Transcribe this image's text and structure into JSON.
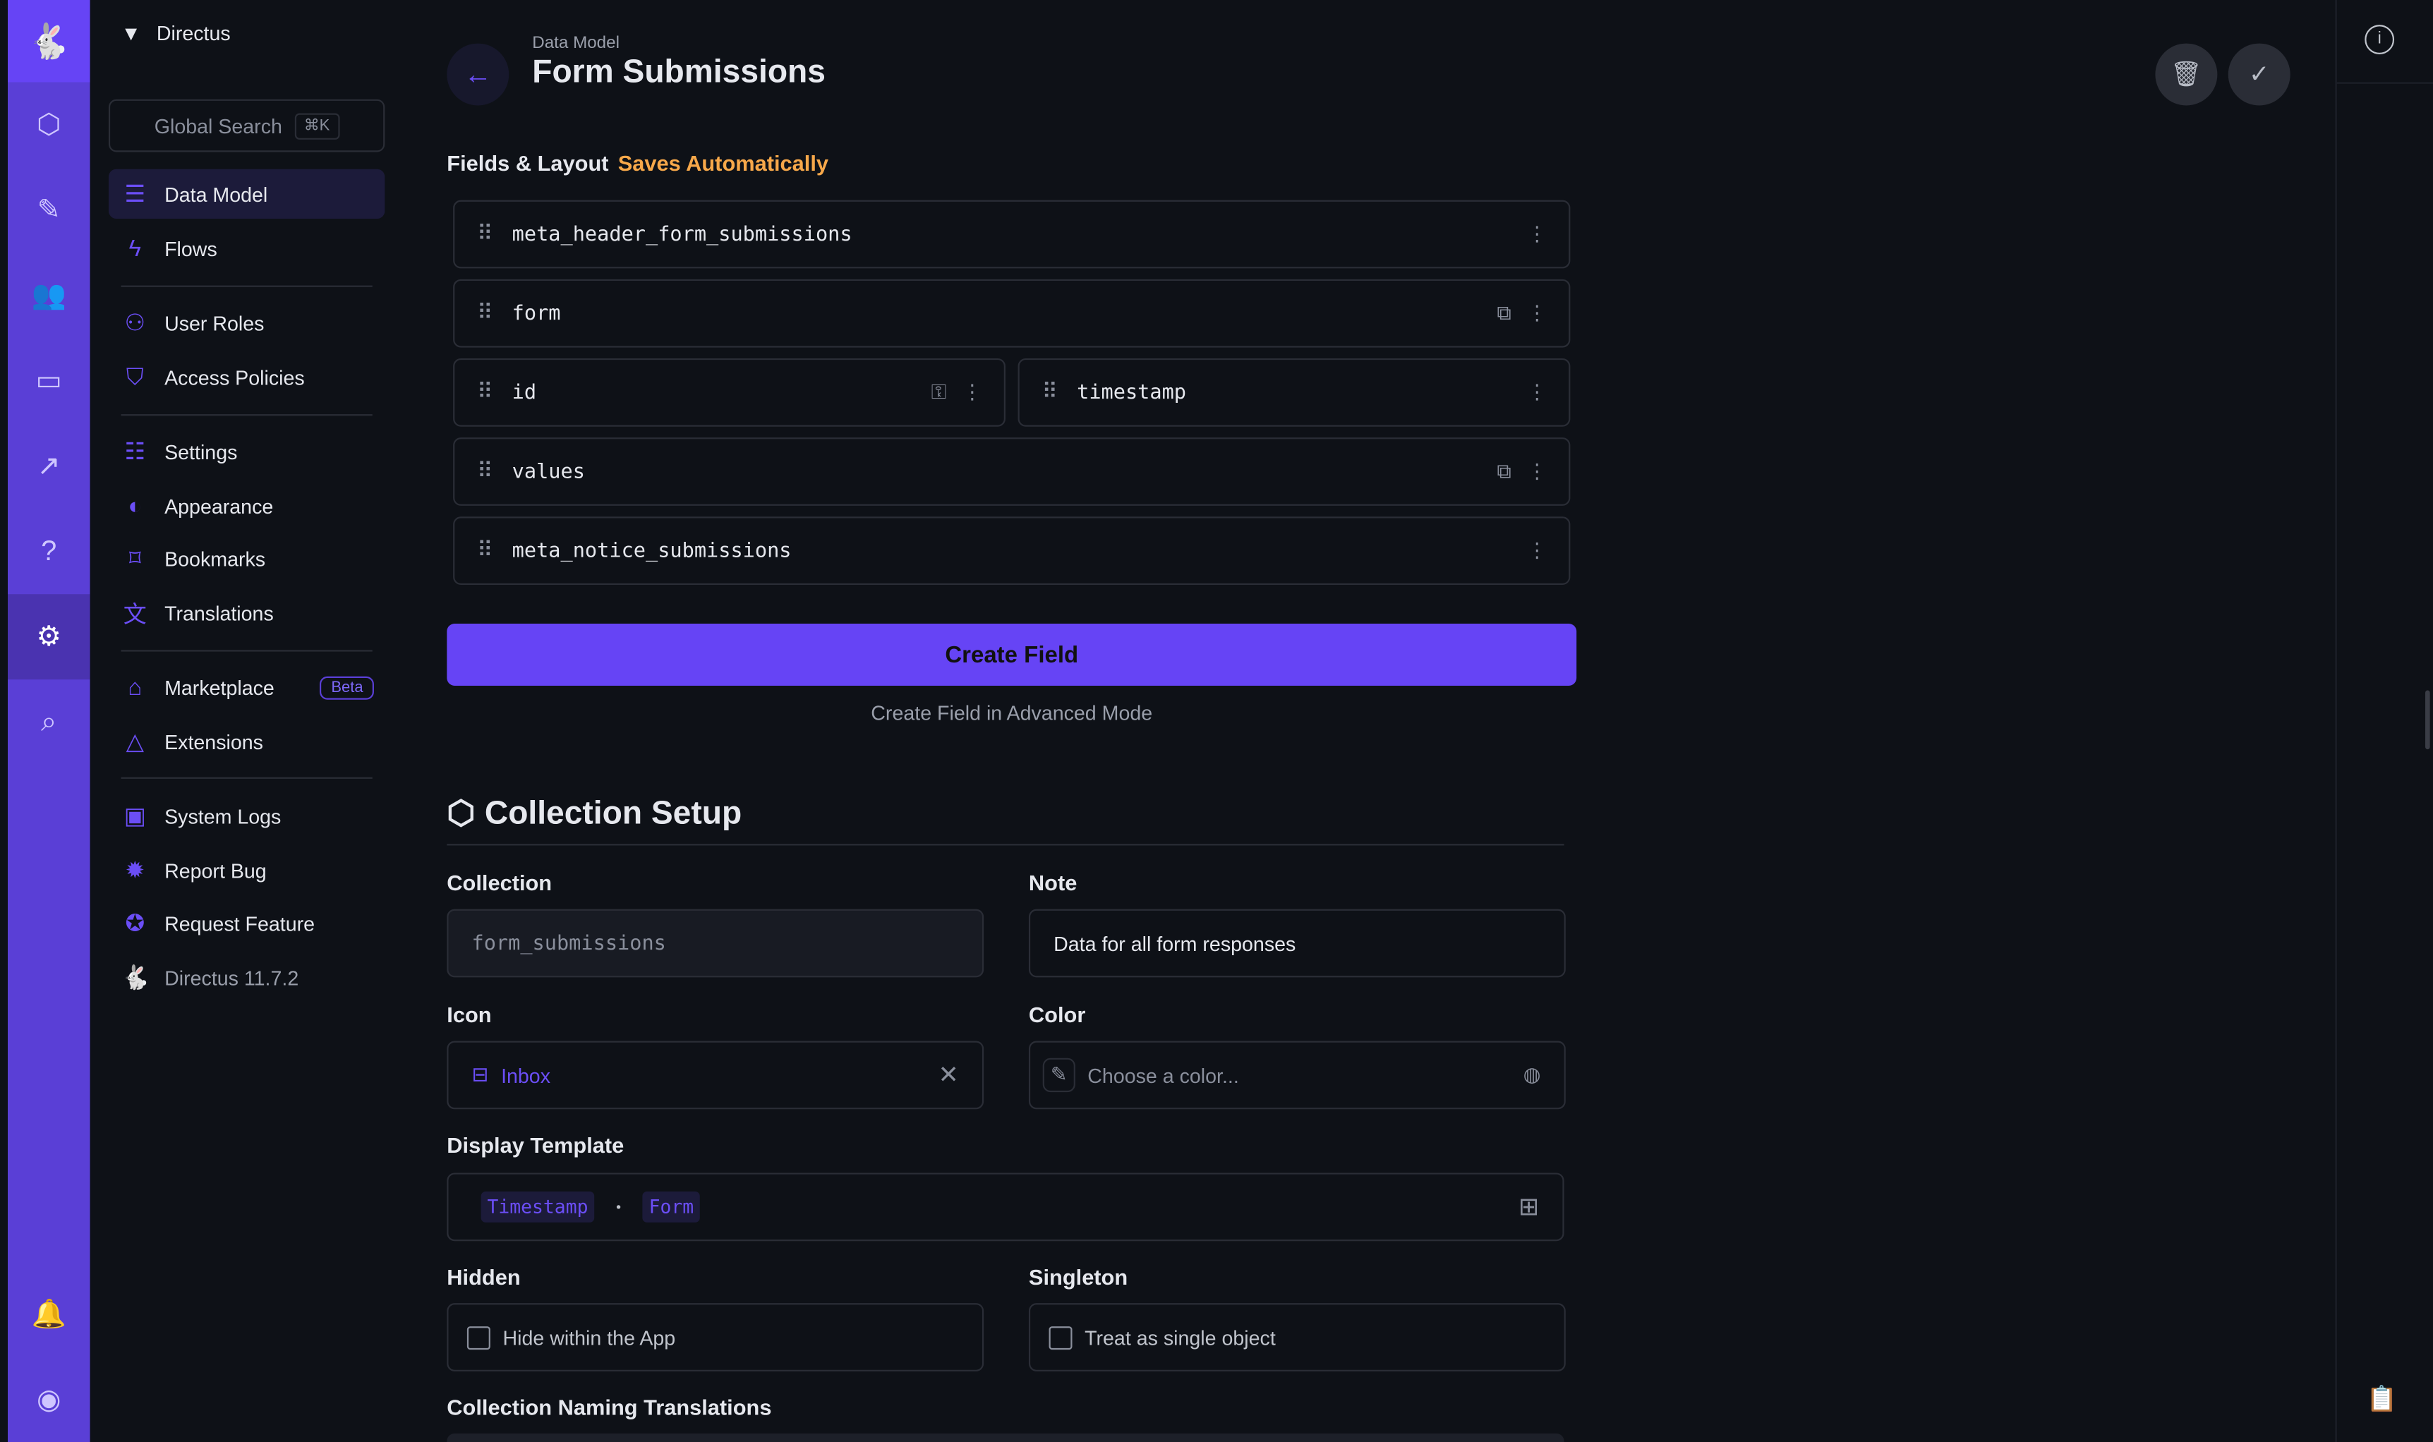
{
  "project": {
    "name": "Directus"
  },
  "search": {
    "label": "Global Search",
    "shortcut": "⌘K"
  },
  "nav": [
    {
      "label": "Data Model",
      "icon": "database-icon"
    },
    {
      "label": "Flows",
      "icon": "bolt-icon"
    },
    {
      "label": "User Roles",
      "icon": "users-icon"
    },
    {
      "label": "Access Policies",
      "icon": "shield-icon"
    },
    {
      "label": "Settings",
      "icon": "sliders-icon"
    },
    {
      "label": "Appearance",
      "icon": "palette-icon"
    },
    {
      "label": "Bookmarks",
      "icon": "bookmark-icon"
    },
    {
      "label": "Translations",
      "icon": "translate-icon"
    },
    {
      "label": "Marketplace",
      "icon": "store-icon",
      "badge": "Beta"
    },
    {
      "label": "Extensions",
      "icon": "shapes-icon"
    },
    {
      "label": "System Logs",
      "icon": "terminal-icon"
    },
    {
      "label": "Report Bug",
      "icon": "bug-icon"
    },
    {
      "label": "Request Feature",
      "icon": "check-badge-icon"
    }
  ],
  "version": "Directus 11.7.2",
  "header": {
    "breadcrumb": "Data Model",
    "title": "Form Submissions"
  },
  "fields_section": {
    "title": "Fields & Layout",
    "status": "Saves Automatically"
  },
  "fields": [
    "meta_header_form_submissions",
    "form",
    "id",
    "timestamp",
    "values",
    "meta_notice_submissions"
  ],
  "create_field": "Create Field",
  "create_advanced": "Create Field in Advanced Mode",
  "setup": {
    "title": "Collection Setup",
    "collection_label": "Collection",
    "collection_value": "form_submissions",
    "note_label": "Note",
    "note_value": "Data for all form responses",
    "icon_label": "Icon",
    "icon_value": "Inbox",
    "color_label": "Color",
    "color_placeholder": "Choose a color...",
    "template_label": "Display Template",
    "template_chips": [
      "Timestamp",
      "Form"
    ],
    "template_sep": "•",
    "hidden_label": "Hidden",
    "hidden_option": "Hide within the App",
    "singleton_label": "Singleton",
    "singleton_option": "Treat as single object",
    "translations_label": "Collection Naming Translations"
  },
  "colors": {
    "accent": "#6644f5",
    "warning": "#f7a84a",
    "background": "#0e1117"
  }
}
